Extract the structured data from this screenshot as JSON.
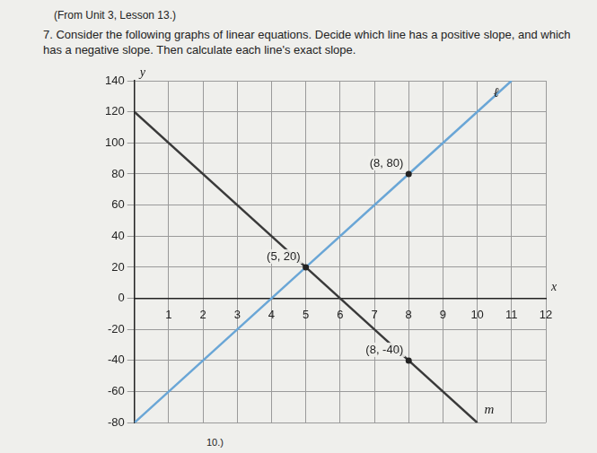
{
  "header": "(From Unit 3, Lesson 13.)",
  "question": "7. Consider the following graphs of linear equations. Decide which line has a positive slope, and which has a negative slope. Then calculate each line's exact slope.",
  "footer": "10.)",
  "chart_data": {
    "type": "line",
    "x_label": "x",
    "y_label": "y",
    "xlim": [
      0,
      12
    ],
    "xticks": [
      1,
      2,
      3,
      4,
      5,
      6,
      7,
      8,
      9,
      10,
      11,
      12
    ],
    "ylim": [
      -80,
      140
    ],
    "yticks": [
      -80,
      -60,
      -40,
      -20,
      0,
      20,
      40,
      60,
      80,
      100,
      120,
      140
    ],
    "grid": true,
    "series": [
      {
        "name": "ℓ",
        "color": "#6aa6d6",
        "marker": "none",
        "line_style": "solid",
        "x": [
          0,
          5,
          8,
          11
        ],
        "values": [
          -80,
          20,
          80,
          140
        ]
      },
      {
        "name": "m",
        "color": "#3a3a3a",
        "marker": "none",
        "line_style": "solid",
        "x": [
          0,
          5,
          8,
          10
        ],
        "values": [
          120,
          20,
          -40,
          -80
        ]
      }
    ],
    "annotations": [
      {
        "text": "(8, 80)",
        "x": 8,
        "y": 80
      },
      {
        "text": "(5, 20)",
        "x": 5,
        "y": 20
      },
      {
        "text": "(8, -40)",
        "x": 8,
        "y": -40
      }
    ]
  }
}
